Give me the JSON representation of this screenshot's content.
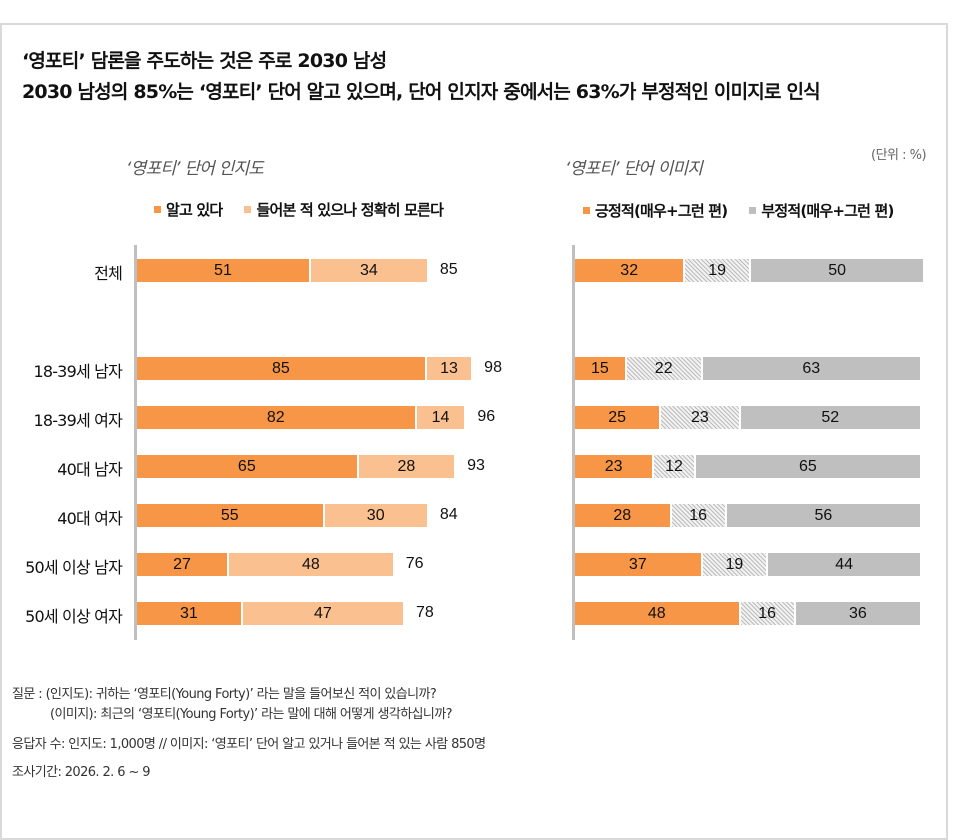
{
  "header": {
    "title_line1": "‘영포티’ 담론을 주도하는 것은 주로 2030 남성",
    "title_line2": "2030 남성의 85%는 ‘영포티’ 단어 알고 있으며, 단어 인지자 중에서는 63%가 부정적인 이미지로 인식",
    "unit_label": "(단위 : %)"
  },
  "colors": {
    "orange": "#F79646",
    "light_orange": "#FAC090",
    "gray": "#BFBFBF",
    "hatch": "#D0D0D0"
  },
  "chart_data": [
    {
      "type": "bar",
      "orientation": "horizontal",
      "stacked": true,
      "title": "‘영포티’ 단어 인지도",
      "categories": [
        "전체",
        "18-39세 남자",
        "18-39세 여자",
        "40대 남자",
        "40대 여자",
        "50세 이상 남자",
        "50세 이상 여자"
      ],
      "series": [
        {
          "name": "알고 있다",
          "color": "#F79646",
          "values": [
            51,
            85,
            82,
            65,
            55,
            27,
            31
          ]
        },
        {
          "name": "들어본 적 있으나 정확히 모른다",
          "color": "#FAC090",
          "values": [
            34,
            13,
            14,
            28,
            30,
            48,
            47
          ]
        }
      ],
      "totals": [
        85,
        98,
        96,
        93,
        84,
        76,
        78
      ],
      "legend": [
        "알고 있다",
        "들어본 적 있으나 정확히 모른다"
      ],
      "legend_position": "top",
      "xlim": [
        0,
        100
      ],
      "grid": false
    },
    {
      "type": "bar",
      "orientation": "horizontal",
      "stacked": true,
      "title": "‘영포티’ 단어 이미지",
      "categories": [
        "전체",
        "18-39세 남자",
        "18-39세 여자",
        "40대 남자",
        "40대 여자",
        "50세 이상 남자",
        "50세 이상 여자"
      ],
      "series": [
        {
          "name": "긍정적(매우+그런 편)",
          "color": "#F79646",
          "values": [
            32,
            15,
            25,
            23,
            28,
            37,
            48
          ]
        },
        {
          "name": "",
          "color": "hatched",
          "values": [
            19,
            22,
            23,
            12,
            16,
            19,
            16
          ]
        },
        {
          "name": "부정적(매우+그런 편)",
          "color": "#BFBFBF",
          "values": [
            50,
            63,
            52,
            65,
            56,
            44,
            36
          ]
        }
      ],
      "legend": [
        "긍정적(매우+그런 편)",
        "부정적(매우+그런 편)"
      ],
      "legend_position": "top",
      "unit": "%",
      "xlim": [
        0,
        100
      ],
      "grid": false
    }
  ],
  "footer": {
    "question_line1": "질문 : (인지도): 귀하는 ‘영포티(Young Forty)’ 라는 말을 들어보신 적이 있습니까?",
    "question_line2": "(이미지): 최근의 ‘영포티(Young Forty)’ 라는 말에 대해 어떻게 생각하십니까?",
    "respondents": "응답자 수: 인지도: 1,000명 // 이미지: ‘영포티’ 단어 알고 있거나 들어본 적 있는 사람 850명",
    "period": "조사기간: 2026. 2. 6 ~ 9"
  }
}
